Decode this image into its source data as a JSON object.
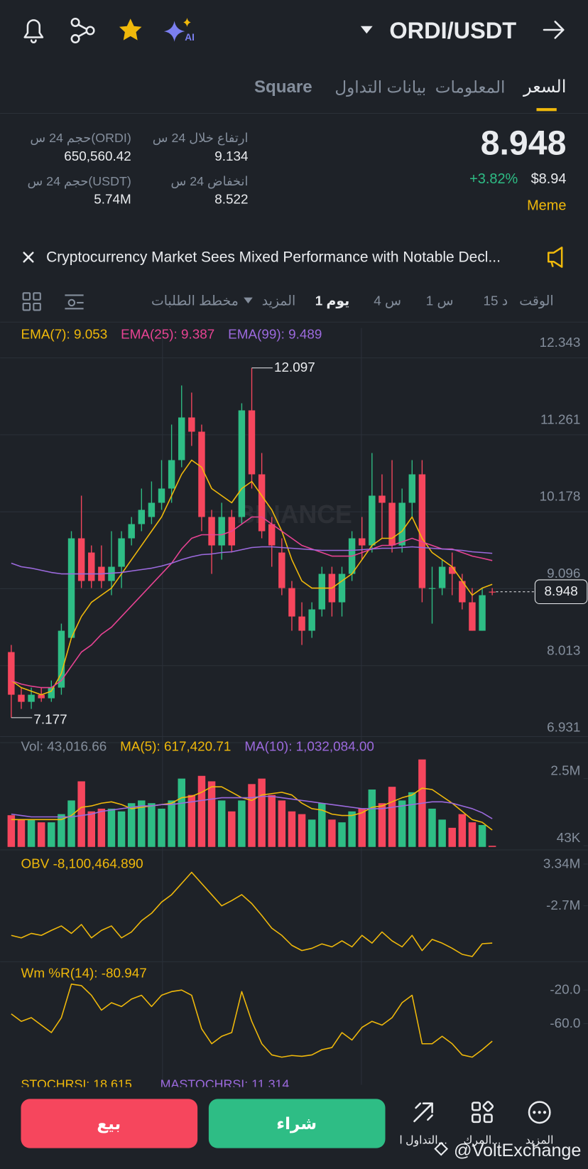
{
  "header": {
    "pair": "ORDI/USDT",
    "ai_label": "AI"
  },
  "tabs": [
    "السعر",
    "المعلومات",
    "بيانات التداول",
    "Square"
  ],
  "stats": {
    "high_label": "ارتفاع خلال 24 س",
    "high": "9.134",
    "low_label": "انخفاض 24 س",
    "low": "8.522",
    "vol_base_label": "حجم 24 س(ORDI)",
    "vol_base": "650,560.42",
    "vol_quote_label": "حجم 24 س(USDT)",
    "vol_quote": "5.74M"
  },
  "price": {
    "last": "8.948",
    "change": "+3.82%",
    "usd": "$8.94",
    "tag": "Meme"
  },
  "news": "Cryptocurrency Market Sees Mixed Performance with Notable Decl...",
  "toolbar": [
    "الوقت",
    "15 د",
    "1 س",
    "4 س",
    "1 يوم",
    "المزيد",
    "مخطط الطلبات"
  ],
  "chart_data": [
    {
      "type": "candlestick",
      "watermark": "BINANCE",
      "up_color": "#2ebd85",
      "down_color": "#f6465d",
      "grid": true,
      "open": [
        8.1,
        7.5,
        7.4,
        7.5,
        7.45,
        7.6,
        8.3,
        9.7,
        9.5,
        9.3,
        9.1,
        9.3,
        9.7,
        9.9,
        10.0,
        10.2,
        10.4,
        10.8,
        11.4,
        11.2,
        10.0,
        9.6,
        10.0,
        10.0,
        11.5,
        10.6,
        9.9,
        9.5,
        9.0,
        8.6,
        8.4,
        8.7,
        9.2,
        8.8,
        9.2,
        9.7,
        9.6,
        10.3,
        10.2,
        9.6,
        10.2,
        10.6,
        9.0,
        9.0,
        9.3,
        9.1,
        8.8,
        8.4,
        8.95
      ],
      "high": [
        8.2,
        7.6,
        7.6,
        7.6,
        7.7,
        8.5,
        9.8,
        10.3,
        9.6,
        9.6,
        9.8,
        9.8,
        10.0,
        10.4,
        10.5,
        10.8,
        11.3,
        11.85,
        11.75,
        11.3,
        10.1,
        10.2,
        10.1,
        11.6,
        12.097,
        10.9,
        10.0,
        9.7,
        9.1,
        8.8,
        8.8,
        9.3,
        9.3,
        9.3,
        9.8,
        10.0,
        10.9,
        10.6,
        10.8,
        10.4,
        10.8,
        10.8,
        9.3,
        9.4,
        9.5,
        9.2,
        9.0,
        9.0,
        9.0
      ],
      "low": [
        7.177,
        7.3,
        7.3,
        7.4,
        7.4,
        7.5,
        8.3,
        9.0,
        9.0,
        9.0,
        8.9,
        9.0,
        9.6,
        9.8,
        9.9,
        10.1,
        10.2,
        10.7,
        11.0,
        9.8,
        9.2,
        9.4,
        9.5,
        9.9,
        10.4,
        9.7,
        9.3,
        8.9,
        8.4,
        8.2,
        8.3,
        8.6,
        8.6,
        8.6,
        9.1,
        9.4,
        9.5,
        9.7,
        9.5,
        9.5,
        10.0,
        8.8,
        8.5,
        8.9,
        8.9,
        8.7,
        8.4,
        8.4,
        8.9
      ],
      "close": [
        7.5,
        7.4,
        7.5,
        7.45,
        7.6,
        8.4,
        9.7,
        9.1,
        9.1,
        9.1,
        9.3,
        9.7,
        9.9,
        10.1,
        10.2,
        10.4,
        10.8,
        11.4,
        11.2,
        10.0,
        9.6,
        10.0,
        9.6,
        11.5,
        10.6,
        9.8,
        9.6,
        9.0,
        8.6,
        8.4,
        8.7,
        9.2,
        8.8,
        9.2,
        9.7,
        9.6,
        10.3,
        10.2,
        9.6,
        10.2,
        10.6,
        9.0,
        9.0,
        9.3,
        9.2,
        8.8,
        8.4,
        8.9,
        8.948
      ],
      "series": [
        {
          "name": "EMA(7): 9.053",
          "color": "#f0b90b",
          "values": [
            7.7,
            7.6,
            7.55,
            7.5,
            7.55,
            7.8,
            8.3,
            8.6,
            8.8,
            8.9,
            9.0,
            9.2,
            9.4,
            9.6,
            9.8,
            10.0,
            10.3,
            10.6,
            10.8,
            10.7,
            10.4,
            10.3,
            10.2,
            10.4,
            10.5,
            10.3,
            10.1,
            9.8,
            9.4,
            9.1,
            9.0,
            9.0,
            9.0,
            9.1,
            9.2,
            9.4,
            9.6,
            9.7,
            9.7,
            9.8,
            10.0,
            9.7,
            9.5,
            9.4,
            9.3,
            9.1,
            8.9,
            9.0,
            9.053
          ]
        },
        {
          "name": "EMA(25): 9.387",
          "color": "#e84393",
          "values": [
            7.7,
            7.65,
            7.62,
            7.6,
            7.6,
            7.7,
            7.9,
            8.1,
            8.2,
            8.35,
            8.45,
            8.6,
            8.75,
            8.9,
            9.05,
            9.2,
            9.35,
            9.55,
            9.7,
            9.75,
            9.75,
            9.75,
            9.8,
            9.9,
            10.0,
            10.0,
            9.9,
            9.8,
            9.7,
            9.6,
            9.55,
            9.5,
            9.45,
            9.45,
            9.45,
            9.5,
            9.55,
            9.6,
            9.6,
            9.65,
            9.7,
            9.65,
            9.6,
            9.55,
            9.55,
            9.5,
            9.45,
            9.42,
            9.387
          ]
        },
        {
          "name": "EMA(99): 9.489",
          "color": "#9c6ade",
          "values": [
            9.35,
            9.3,
            9.28,
            9.25,
            9.22,
            9.2,
            9.2,
            9.2,
            9.2,
            9.2,
            9.21,
            9.22,
            9.24,
            9.26,
            9.28,
            9.31,
            9.35,
            9.4,
            9.44,
            9.47,
            9.48,
            9.5,
            9.51,
            9.54,
            9.57,
            9.58,
            9.58,
            9.57,
            9.56,
            9.55,
            9.54,
            9.53,
            9.53,
            9.53,
            9.53,
            9.54,
            9.55,
            9.56,
            9.56,
            9.57,
            9.58,
            9.57,
            9.56,
            9.55,
            9.54,
            9.53,
            9.51,
            9.5,
            9.489
          ]
        }
      ],
      "ylim": [
        6.911,
        12.658
      ],
      "yticks": [
        12.343,
        11.261,
        10.178,
        9.096,
        8.013,
        6.931
      ]
    },
    {
      "type": "bar",
      "title": "Vol: 43,016.66",
      "values": [
        1160000,
        1000000,
        1000000,
        900000,
        900000,
        1200000,
        1700000,
        2400000,
        1300000,
        1400000,
        1400000,
        1300000,
        1600000,
        1700000,
        1600000,
        1400000,
        1700000,
        2500000,
        1900000,
        2600000,
        2400000,
        1700000,
        1300000,
        1700000,
        2300000,
        2500000,
        1900000,
        1700000,
        1300000,
        1200000,
        1000000,
        1600000,
        1000000,
        900000,
        1300000,
        1400000,
        2100000,
        1600000,
        2200000,
        1700000,
        2000000,
        3200000,
        1400000,
        1000000,
        700000,
        1200000,
        900000,
        800000,
        43016.66
      ],
      "series": [
        {
          "name": "MA(5): 617,420.71",
          "color": "#f0b90b",
          "values": [
            1000000,
            1000000,
            1000000,
            1000000,
            1000000,
            1000000,
            1150000,
            1450000,
            1500000,
            1600000,
            1650000,
            1550000,
            1400000,
            1450000,
            1500000,
            1550000,
            1600000,
            1800000,
            1850000,
            2000000,
            2200000,
            2200000,
            2000000,
            1800000,
            1700000,
            1900000,
            1950000,
            2000000,
            1900000,
            1600000,
            1400000,
            1350000,
            1200000,
            1150000,
            1150000,
            1250000,
            1450000,
            1500000,
            1650000,
            1800000,
            1900000,
            2150000,
            2100000,
            1850000,
            1600000,
            1300000,
            1000000,
            900000,
            617420.71
          ]
        },
        {
          "name": "MA(10): 1,032,084.00",
          "color": "#9c6ade",
          "values": [
            1200000,
            1150000,
            1100000,
            1100000,
            1100000,
            1100000,
            1100000,
            1150000,
            1200000,
            1300000,
            1350000,
            1400000,
            1450000,
            1500000,
            1500000,
            1550000,
            1550000,
            1600000,
            1650000,
            1700000,
            1750000,
            1800000,
            1800000,
            1800000,
            1800000,
            1850000,
            1850000,
            1800000,
            1750000,
            1700000,
            1650000,
            1600000,
            1550000,
            1500000,
            1450000,
            1400000,
            1400000,
            1400000,
            1450000,
            1500000,
            1550000,
            1600000,
            1650000,
            1650000,
            1600000,
            1500000,
            1400000,
            1250000,
            1032084
          ]
        }
      ],
      "ylim": [
        0,
        3300000
      ],
      "yticks": [
        {
          "value": 2500000,
          "label": "2.5M"
        },
        {
          "value": 43000,
          "label": "43K"
        }
      ]
    },
    {
      "type": "line",
      "series": [
        {
          "name": "OBV -8,100,464.890",
          "color": "#f0b90b",
          "values": [
            -6990000,
            -7350000,
            -6700000,
            -6990000,
            -6270000,
            -5620000,
            -6700000,
            -5410000,
            -7350000,
            -6270000,
            -5620000,
            -7350000,
            -6490000,
            -4870000,
            -3790000,
            -2170000,
            -1090000,
            530000,
            2150000,
            530000,
            -1090000,
            -2710000,
            -1950000,
            -1090000,
            -2380000,
            -4110000,
            -5950000,
            -6990000,
            -8430000,
            -9190000,
            -8860000,
            -8220000,
            -8650000,
            -7780000,
            -8650000,
            -6990000,
            -8110000,
            -6490000,
            -7780000,
            -8650000,
            -6990000,
            -9190000,
            -7570000,
            -8110000,
            -8860000,
            -9730000,
            -10050000,
            -8200000,
            -8100464.89
          ]
        }
      ],
      "ylim": [
        -10808000,
        4312000
      ],
      "yticks": [
        {
          "value": 3340000,
          "label": "3.34M"
        },
        {
          "value": -2700000,
          "label": "-2.7M"
        }
      ]
    },
    {
      "type": "line",
      "series": [
        {
          "name": "Wm %R(14): -80.947",
          "color": "#f0b90b",
          "values": [
            -48.4,
            -57.3,
            -52.9,
            -61.8,
            -70.7,
            -52.9,
            -12.9,
            -14.7,
            -26.2,
            -44.0,
            -35.1,
            -39.6,
            -30.7,
            -26.2,
            -39.6,
            -26.2,
            -21.8,
            -20.0,
            -26.2,
            -66.2,
            -84.0,
            -75.1,
            -70.7,
            -21.8,
            -57.3,
            -84.0,
            -97.3,
            -100,
            -98,
            -99,
            -97.3,
            -91.1,
            -88.5,
            -70.7,
            -79.6,
            -64.5,
            -57.3,
            -61.8,
            -52.9,
            -35.1,
            -26.2,
            -84.0,
            -84.0,
            -75.1,
            -84.0,
            -97.3,
            -100,
            -91.1,
            -80.947
          ]
        }
      ],
      "ylim": [
        -132.9,
        9.33
      ],
      "yticks": [
        {
          "value": -20,
          "label": "-20.0"
        },
        {
          "value": -60,
          "label": "-60.0"
        }
      ]
    }
  ],
  "indicator_more": [
    "STOCHRSI: 18.615",
    "MASTOCHRSI: 11.314"
  ],
  "footer": {
    "sell": "بيع",
    "buy": "شراء",
    "actions": [
      "التداول ا...",
      "المرك...",
      "المزيد"
    ]
  },
  "credit": "@VoltExchange"
}
